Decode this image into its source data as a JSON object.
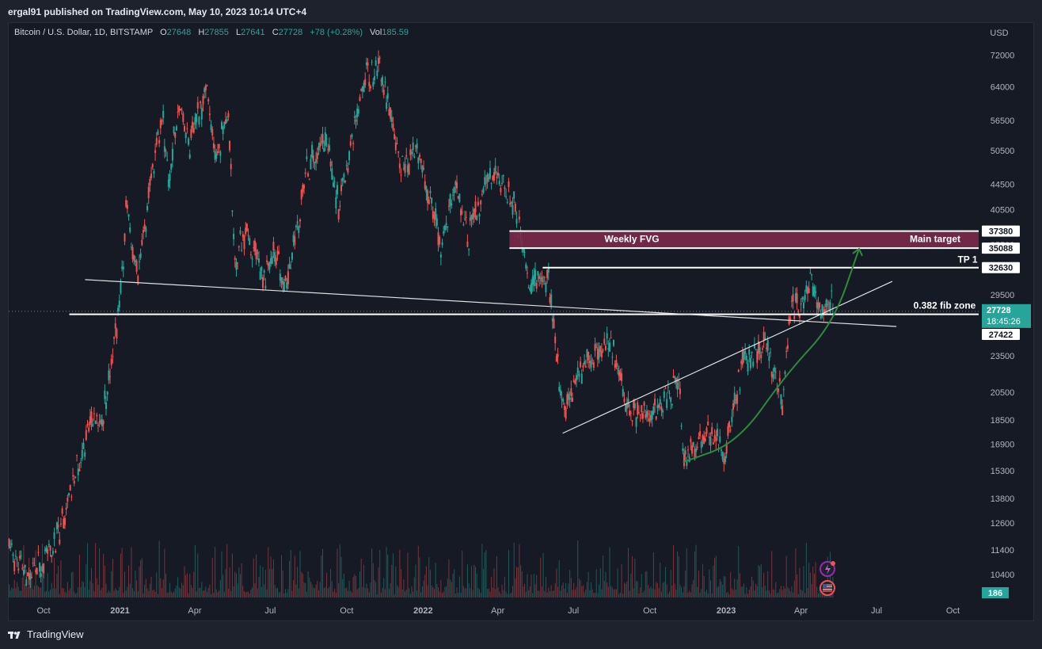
{
  "header": {
    "published_text": "ergal91 published on TradingView.com, May 10, 2023 10:14 UTC+4"
  },
  "legend": {
    "symbol": "Bitcoin / U.S. Dollar, 1D, BITSTAMP",
    "open_label": "O",
    "open": "27648",
    "high_label": "H",
    "high": "27855",
    "low_label": "L",
    "low": "27641",
    "close_label": "C",
    "close": "27728",
    "change": "+78 (+0.28%)",
    "vol_label": "Vol",
    "vol": "185.59"
  },
  "footer": {
    "brand": "TradingView",
    "logo_icon": "tradingview-logo-icon"
  },
  "colors": {
    "background": "#161a25",
    "up": "#26a69a",
    "down": "#ef5350",
    "fvg_zone": "#7a2a4a",
    "curve": "#2e8b3a",
    "price_badge": "#26a69a"
  },
  "chart_data": {
    "type": "candlestick",
    "currency": "USD",
    "y_scale": "log",
    "ylim": [
      9600,
      80000
    ],
    "y_ticks": [
      72000,
      64000,
      56500,
      50500,
      44500,
      40500,
      35500,
      29500,
      23500,
      20500,
      18500,
      16900,
      15300,
      13800,
      12600,
      11400,
      10400
    ],
    "x_ticks": [
      {
        "label": "Oct",
        "date": "2020-10-01",
        "bold": false
      },
      {
        "label": "2021",
        "date": "2021-01-01",
        "bold": true
      },
      {
        "label": "Apr",
        "date": "2021-04-01",
        "bold": false
      },
      {
        "label": "Jul",
        "date": "2021-07-01",
        "bold": false
      },
      {
        "label": "Oct",
        "date": "2021-10-01",
        "bold": false
      },
      {
        "label": "2022",
        "date": "2022-01-01",
        "bold": true
      },
      {
        "label": "Apr",
        "date": "2022-04-01",
        "bold": false
      },
      {
        "label": "Jul",
        "date": "2022-07-01",
        "bold": false
      },
      {
        "label": "Oct",
        "date": "2022-10-01",
        "bold": false
      },
      {
        "label": "2023",
        "date": "2023-01-01",
        "bold": true
      },
      {
        "label": "Apr",
        "date": "2023-04-01",
        "bold": false
      },
      {
        "label": "Jul",
        "date": "2023-07-01",
        "bold": false
      },
      {
        "label": "Oct",
        "date": "2023-10-01",
        "bold": false
      }
    ],
    "price_series": [
      [
        "2020-08-20",
        11500
      ],
      [
        "2020-09-10",
        10300
      ],
      [
        "2020-09-25",
        10700
      ],
      [
        "2020-10-10",
        11300
      ],
      [
        "2020-10-25",
        13000
      ],
      [
        "2020-11-10",
        15300
      ],
      [
        "2020-11-25",
        18500
      ],
      [
        "2020-12-10",
        18300
      ],
      [
        "2020-12-20",
        22500
      ],
      [
        "2021-01-01",
        29000
      ],
      [
        "2021-01-08",
        40500
      ],
      [
        "2021-01-22",
        31000
      ],
      [
        "2021-02-08",
        46000
      ],
      [
        "2021-02-21",
        57500
      ],
      [
        "2021-02-28",
        45000
      ],
      [
        "2021-03-13",
        61000
      ],
      [
        "2021-03-25",
        51000
      ],
      [
        "2021-04-14",
        64000
      ],
      [
        "2021-04-25",
        48500
      ],
      [
        "2021-05-10",
        58500
      ],
      [
        "2021-05-19",
        34000
      ],
      [
        "2021-06-01",
        37000
      ],
      [
        "2021-06-22",
        31500
      ],
      [
        "2021-07-05",
        35000
      ],
      [
        "2021-07-20",
        29800
      ],
      [
        "2021-08-14",
        47500
      ],
      [
        "2021-09-07",
        52500
      ],
      [
        "2021-09-21",
        40500
      ],
      [
        "2021-10-20",
        66000
      ],
      [
        "2021-11-10",
        69000
      ],
      [
        "2021-12-04",
        47000
      ],
      [
        "2021-12-27",
        51000
      ],
      [
        "2022-01-22",
        35000
      ],
      [
        "2022-02-10",
        44500
      ],
      [
        "2022-02-24",
        37000
      ],
      [
        "2022-03-28",
        47500
      ],
      [
        "2022-04-20",
        41500
      ],
      [
        "2022-05-09",
        30500
      ],
      [
        "2022-05-31",
        31800
      ],
      [
        "2022-06-18",
        18900
      ],
      [
        "2022-07-20",
        23500
      ],
      [
        "2022-08-14",
        24800
      ],
      [
        "2022-09-06",
        18800
      ],
      [
        "2022-10-10",
        19300
      ],
      [
        "2022-11-05",
        21200
      ],
      [
        "2022-11-10",
        16000
      ],
      [
        "2022-12-15",
        17800
      ],
      [
        "2022-12-31",
        16500
      ],
      [
        "2023-01-21",
        23000
      ],
      [
        "2023-02-16",
        24800
      ],
      [
        "2023-03-10",
        19800
      ],
      [
        "2023-03-18",
        27500
      ],
      [
        "2023-04-14",
        30500
      ],
      [
        "2023-04-25",
        27500
      ],
      [
        "2023-05-06",
        29500
      ],
      [
        "2023-05-10",
        27728
      ]
    ],
    "volume_last": "186",
    "horizontal_levels": [
      {
        "value": 37380,
        "label": "37380"
      },
      {
        "value": 35088,
        "label": "35088"
      },
      {
        "value": 32630,
        "label": "32630",
        "annotation": "TP 1"
      },
      {
        "value": 27422,
        "label": "27422",
        "annotation": "0.382 fib zone"
      }
    ],
    "current_price": {
      "value": 27728,
      "label": "27728",
      "countdown": "18:45:26"
    },
    "zone": {
      "from": 35088,
      "to": 37380,
      "annotation_left": "Weekly FVG",
      "annotation_right": "Main target"
    },
    "trendlines": [
      {
        "from": [
          "2020-11-20",
          31200
        ],
        "to": [
          "2023-07-25",
          26200
        ]
      },
      {
        "from": [
          "2022-06-18",
          17600
        ],
        "to": [
          "2023-07-20",
          31000
        ]
      }
    ],
    "curve_arrow": {
      "points": [
        [
          "2022-11-10",
          15800
        ],
        [
          "2023-01-15",
          17000
        ],
        [
          "2023-03-15",
          22000
        ],
        [
          "2023-05-10",
          26500
        ],
        [
          "2023-06-10",
          35000
        ]
      ]
    }
  }
}
